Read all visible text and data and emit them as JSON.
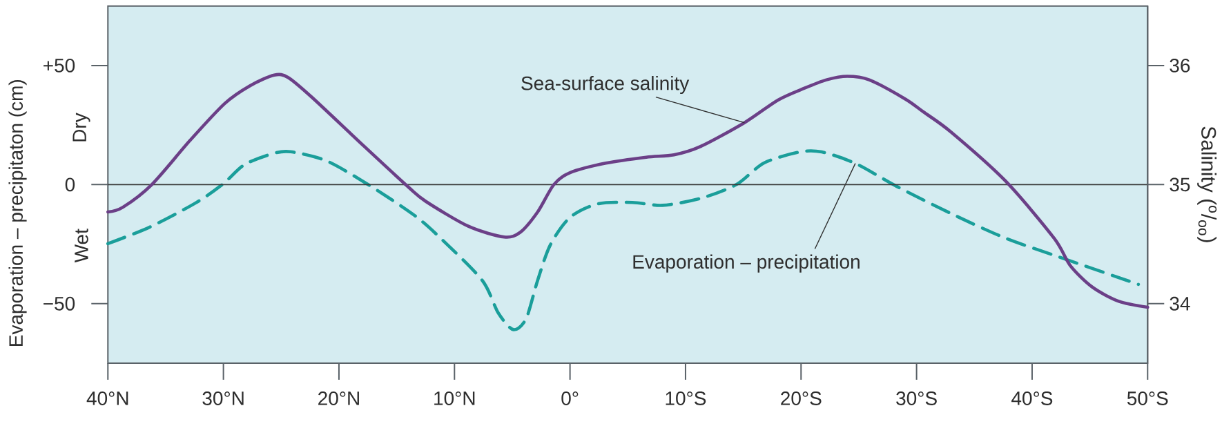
{
  "chart_data": {
    "type": "line",
    "ylabel": "Evaporation – precipitaton (cm)",
    "y2label": "Salinity ($^{o}$/$_{oo}$)",
    "annotations": [
      "Dry",
      "Wet"
    ],
    "xlim": [
      40,
      -50
    ],
    "xticks": [
      {
        "value": 40,
        "label": "40°N"
      },
      {
        "value": 30,
        "label": "30°N"
      },
      {
        "value": 20,
        "label": "20°N"
      },
      {
        "value": 10,
        "label": "10°N"
      },
      {
        "value": 0,
        "label": "0°"
      },
      {
        "value": -10,
        "label": "10°S"
      },
      {
        "value": -20,
        "label": "20°S"
      },
      {
        "value": -30,
        "label": "30°S"
      },
      {
        "value": -40,
        "label": "40°S"
      },
      {
        "value": -50,
        "label": "50°S"
      }
    ],
    "ylim": [
      -75,
      75
    ],
    "yticks": [
      {
        "value": -50,
        "label": "−50"
      },
      0,
      {
        "value": 50,
        "label": "+50"
      }
    ],
    "y2lim": [
      33.5,
      36.5
    ],
    "y2ticks": [
      34,
      35,
      36
    ],
    "ref_lines": [
      {
        "axis": "y",
        "value": 0,
        "color": "#3a3a3a"
      }
    ],
    "series": [
      {
        "name": "Sea-surface salinity",
        "color": "#6b3f87",
        "axis": "y2",
        "line_style": "solid",
        "x": [
          40,
          38.7,
          36.2,
          32.9,
          29.9,
          27.7,
          25.6,
          24.4,
          22.3,
          17.8,
          14.0,
          12.5,
          8.8,
          5.7,
          4.3,
          2.8,
          1.4,
          0,
          -3.1,
          -6.6,
          -9.0,
          -11.3,
          -15.1,
          -18.0,
          -20.3,
          -22.2,
          -24.0,
          -25.9,
          -29.0,
          -30.6,
          -33.0,
          -37.7,
          -41.9,
          -43.3,
          -45.2,
          -47.5,
          -50
        ],
        "values": [
          34.77,
          34.81,
          35.0,
          35.37,
          35.68,
          35.83,
          35.92,
          35.9,
          35.73,
          35.32,
          34.98,
          34.86,
          34.65,
          34.56,
          34.6,
          34.77,
          35.0,
          35.1,
          35.18,
          35.23,
          35.25,
          35.32,
          35.52,
          35.71,
          35.81,
          35.88,
          35.91,
          35.88,
          35.72,
          35.61,
          35.44,
          35.03,
          34.55,
          34.32,
          34.14,
          34.02,
          33.97
        ]
      },
      {
        "name": "Evaporation – precipitation",
        "color": "#1a9e9a",
        "line_style": "dashed",
        "x": [
          40,
          36.4,
          32.4,
          30.0,
          28.2,
          25.8,
          24.2,
          21.1,
          17.6,
          13.5,
          11.1,
          7.6,
          6.2,
          4.9,
          3.8,
          2.8,
          1.7,
          0,
          -2.4,
          -5.4,
          -8.0,
          -11.3,
          -14.4,
          -16.8,
          -19.9,
          -21.8,
          -24.7,
          -28.3,
          -33.0,
          -37.7,
          -42.4,
          -49.2
        ],
        "values": [
          -24.8,
          -17.9,
          -7.7,
          0.4,
          8.3,
          12.9,
          13.8,
          10.0,
          0.4,
          -12.8,
          -23.0,
          -40.2,
          -54.0,
          -60.9,
          -56.3,
          -40.2,
          -25.3,
          -13.8,
          -8.1,
          -7.5,
          -8.7,
          -5.8,
          0,
          9.1,
          13.7,
          13.7,
          8.9,
          -0.8,
          -12.2,
          -22.5,
          -30.5,
          -41.9
        ]
      }
    ]
  }
}
